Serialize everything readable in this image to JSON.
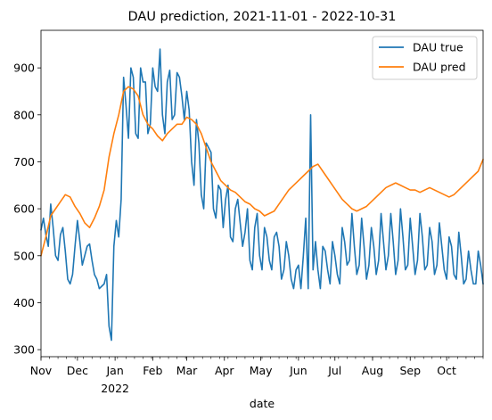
{
  "chart_data": {
    "type": "line",
    "title": "DAU prediction, 2021-11-01 - 2022-10-31",
    "xlabel": "date",
    "ylabel": "",
    "xlim": [
      "2021-11-01",
      "2022-10-31"
    ],
    "ylim": [
      285,
      980
    ],
    "yticks": [
      300,
      400,
      500,
      600,
      700,
      800,
      900
    ],
    "xtick_labels": [
      "Nov",
      "Dec",
      "Jan",
      "Feb",
      "Mar",
      "Apr",
      "May",
      "Jun",
      "Jul",
      "Aug",
      "Sep",
      "Oct"
    ],
    "xtick_dates": [
      "2021-11-01",
      "2021-12-01",
      "2022-01-01",
      "2022-02-01",
      "2022-03-01",
      "2022-04-01",
      "2022-05-01",
      "2022-06-01",
      "2022-07-01",
      "2022-08-01",
      "2022-09-01",
      "2022-10-01"
    ],
    "year_label": "2022",
    "year_date": "2022-01-01",
    "grid": false,
    "legend_position": "top-right",
    "series": [
      {
        "name": "DAU true",
        "color": "#1f77b4",
        "x": [
          "2021-11-01",
          "2021-11-03",
          "2021-11-05",
          "2021-11-07",
          "2021-11-09",
          "2021-11-11",
          "2021-11-13",
          "2021-11-15",
          "2021-11-17",
          "2021-11-19",
          "2021-11-21",
          "2021-11-23",
          "2021-11-25",
          "2021-11-27",
          "2021-11-29",
          "2021-12-01",
          "2021-12-03",
          "2021-12-05",
          "2021-12-07",
          "2021-12-09",
          "2021-12-11",
          "2021-12-13",
          "2021-12-15",
          "2021-12-17",
          "2021-12-19",
          "2021-12-21",
          "2021-12-23",
          "2021-12-25",
          "2021-12-27",
          "2021-12-29",
          "2021-12-31",
          "2022-01-02",
          "2022-01-04",
          "2022-01-06",
          "2022-01-08",
          "2022-01-10",
          "2022-01-12",
          "2022-01-14",
          "2022-01-16",
          "2022-01-18",
          "2022-01-20",
          "2022-01-22",
          "2022-01-24",
          "2022-01-26",
          "2022-01-28",
          "2022-01-30",
          "2022-02-01",
          "2022-02-03",
          "2022-02-05",
          "2022-02-07",
          "2022-02-09",
          "2022-02-11",
          "2022-02-13",
          "2022-02-15",
          "2022-02-17",
          "2022-02-19",
          "2022-02-21",
          "2022-02-23",
          "2022-02-25",
          "2022-02-27",
          "2022-03-01",
          "2022-03-03",
          "2022-03-05",
          "2022-03-07",
          "2022-03-09",
          "2022-03-11",
          "2022-03-13",
          "2022-03-15",
          "2022-03-17",
          "2022-03-19",
          "2022-03-21",
          "2022-03-23",
          "2022-03-25",
          "2022-03-27",
          "2022-03-29",
          "2022-03-31",
          "2022-04-02",
          "2022-04-04",
          "2022-04-06",
          "2022-04-08",
          "2022-04-10",
          "2022-04-12",
          "2022-04-14",
          "2022-04-16",
          "2022-04-18",
          "2022-04-20",
          "2022-04-22",
          "2022-04-24",
          "2022-04-26",
          "2022-04-28",
          "2022-04-30",
          "2022-05-02",
          "2022-05-04",
          "2022-05-06",
          "2022-05-08",
          "2022-05-10",
          "2022-05-12",
          "2022-05-14",
          "2022-05-16",
          "2022-05-18",
          "2022-05-20",
          "2022-05-22",
          "2022-05-24",
          "2022-05-26",
          "2022-05-28",
          "2022-05-30",
          "2022-06-01",
          "2022-06-03",
          "2022-06-05",
          "2022-06-07",
          "2022-06-09",
          "2022-06-11",
          "2022-06-13",
          "2022-06-15",
          "2022-06-17",
          "2022-06-19",
          "2022-06-21",
          "2022-06-23",
          "2022-06-25",
          "2022-06-27",
          "2022-06-29",
          "2022-07-01",
          "2022-07-03",
          "2022-07-05",
          "2022-07-07",
          "2022-07-09",
          "2022-07-11",
          "2022-07-13",
          "2022-07-15",
          "2022-07-17",
          "2022-07-19",
          "2022-07-21",
          "2022-07-23",
          "2022-07-25",
          "2022-07-27",
          "2022-07-29",
          "2022-07-31",
          "2022-08-02",
          "2022-08-04",
          "2022-08-06",
          "2022-08-08",
          "2022-08-10",
          "2022-08-12",
          "2022-08-14",
          "2022-08-16",
          "2022-08-18",
          "2022-08-20",
          "2022-08-22",
          "2022-08-24",
          "2022-08-26",
          "2022-08-28",
          "2022-08-30",
          "2022-09-01",
          "2022-09-03",
          "2022-09-05",
          "2022-09-07",
          "2022-09-09",
          "2022-09-11",
          "2022-09-13",
          "2022-09-15",
          "2022-09-17",
          "2022-09-19",
          "2022-09-21",
          "2022-09-23",
          "2022-09-25",
          "2022-09-27",
          "2022-09-29",
          "2022-10-01",
          "2022-10-03",
          "2022-10-05",
          "2022-10-07",
          "2022-10-09",
          "2022-10-11",
          "2022-10-13",
          "2022-10-15",
          "2022-10-17",
          "2022-10-19",
          "2022-10-21",
          "2022-10-23",
          "2022-10-25",
          "2022-10-27",
          "2022-10-29",
          "2022-10-31"
        ],
        "y": [
          555,
          580,
          545,
          520,
          610,
          560,
          500,
          490,
          545,
          560,
          510,
          450,
          440,
          460,
          520,
          575,
          530,
          480,
          500,
          520,
          525,
          490,
          460,
          450,
          430,
          435,
          440,
          460,
          350,
          320,
          520,
          575,
          540,
          620,
          880,
          820,
          750,
          900,
          880,
          760,
          750,
          900,
          870,
          870,
          760,
          780,
          900,
          860,
          850,
          940,
          800,
          760,
          870,
          895,
          790,
          800,
          890,
          880,
          840,
          790,
          850,
          810,
          700,
          650,
          790,
          740,
          630,
          600,
          740,
          730,
          720,
          600,
          580,
          650,
          640,
          560,
          620,
          650,
          540,
          530,
          600,
          620,
          570,
          520,
          550,
          600,
          490,
          470,
          560,
          590,
          500,
          470,
          560,
          540,
          490,
          470,
          540,
          550,
          520,
          450,
          470,
          530,
          500,
          450,
          430,
          470,
          480,
          430,
          500,
          580,
          430,
          800,
          470,
          530,
          470,
          430,
          520,
          510,
          470,
          440,
          530,
          500,
          460,
          440,
          560,
          530,
          480,
          490,
          590,
          520,
          460,
          480,
          580,
          520,
          450,
          480,
          560,
          520,
          460,
          490,
          590,
          530,
          470,
          500,
          590,
          530,
          460,
          490,
          600,
          540,
          470,
          480,
          580,
          520,
          460,
          490,
          590,
          540,
          470,
          480,
          560,
          530,
          460,
          480,
          570,
          520,
          470,
          450,
          540,
          520,
          460,
          450,
          550,
          500,
          440,
          450,
          510,
          470,
          440,
          440,
          510,
          480,
          440
        ]
      },
      {
        "name": "DAU pred",
        "color": "#ff7f0e",
        "x": [
          "2021-11-01",
          "2021-11-05",
          "2021-11-09",
          "2021-11-13",
          "2021-11-17",
          "2021-11-21",
          "2021-11-25",
          "2021-11-29",
          "2021-12-03",
          "2021-12-07",
          "2021-12-11",
          "2021-12-15",
          "2021-12-19",
          "2021-12-23",
          "2021-12-27",
          "2021-12-31",
          "2022-01-04",
          "2022-01-08",
          "2022-01-12",
          "2022-01-16",
          "2022-01-20",
          "2022-01-24",
          "2022-01-28",
          "2022-02-01",
          "2022-02-05",
          "2022-02-09",
          "2022-02-13",
          "2022-02-17",
          "2022-02-21",
          "2022-02-25",
          "2022-03-01",
          "2022-03-05",
          "2022-03-09",
          "2022-03-13",
          "2022-03-17",
          "2022-03-21",
          "2022-03-25",
          "2022-03-29",
          "2022-04-02",
          "2022-04-06",
          "2022-04-10",
          "2022-04-14",
          "2022-04-18",
          "2022-04-22",
          "2022-04-26",
          "2022-04-30",
          "2022-05-04",
          "2022-05-08",
          "2022-05-12",
          "2022-05-16",
          "2022-05-20",
          "2022-05-24",
          "2022-05-28",
          "2022-06-01",
          "2022-06-05",
          "2022-06-09",
          "2022-06-13",
          "2022-06-17",
          "2022-06-21",
          "2022-06-25",
          "2022-06-29",
          "2022-07-03",
          "2022-07-07",
          "2022-07-11",
          "2022-07-15",
          "2022-07-19",
          "2022-07-23",
          "2022-07-27",
          "2022-07-31",
          "2022-08-04",
          "2022-08-08",
          "2022-08-12",
          "2022-08-16",
          "2022-08-20",
          "2022-08-24",
          "2022-08-28",
          "2022-09-01",
          "2022-09-05",
          "2022-09-09",
          "2022-09-13",
          "2022-09-17",
          "2022-09-21",
          "2022-09-25",
          "2022-09-29",
          "2022-10-03",
          "2022-10-07",
          "2022-10-11",
          "2022-10-15",
          "2022-10-19",
          "2022-10-23",
          "2022-10-27",
          "2022-10-31"
        ],
        "y": [
          500,
          540,
          585,
          600,
          615,
          630,
          625,
          605,
          590,
          570,
          560,
          580,
          605,
          640,
          710,
          760,
          800,
          850,
          860,
          855,
          840,
          800,
          780,
          770,
          755,
          745,
          760,
          770,
          780,
          780,
          795,
          790,
          780,
          760,
          730,
          700,
          680,
          660,
          650,
          640,
          635,
          625,
          615,
          610,
          600,
          595,
          585,
          590,
          595,
          610,
          625,
          640,
          650,
          660,
          670,
          680,
          690,
          695,
          680,
          665,
          650,
          635,
          620,
          610,
          600,
          595,
          600,
          605,
          615,
          625,
          635,
          645,
          650,
          655,
          650,
          645,
          640,
          640,
          635,
          640,
          645,
          640,
          635,
          630,
          625,
          630,
          640,
          650,
          660,
          670,
          680,
          705
        ]
      }
    ]
  }
}
